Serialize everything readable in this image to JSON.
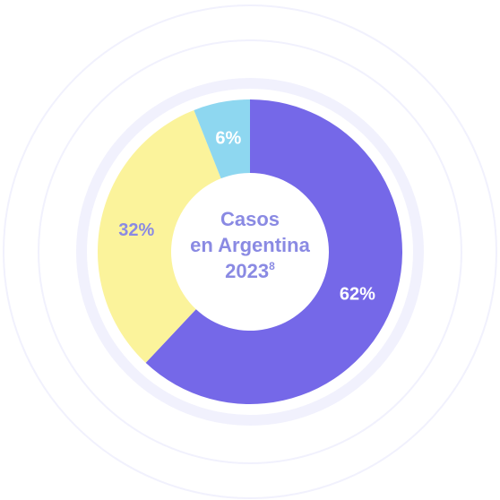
{
  "chart_data": {
    "type": "pie",
    "title_lines": [
      "Casos",
      "en Argentina",
      "2023"
    ],
    "title_superscript": "8",
    "slices": [
      {
        "label": "62%",
        "value": 62,
        "color": "#7568e8",
        "label_color": "#ffffff"
      },
      {
        "label": "32%",
        "value": 32,
        "color": "#fbf39b",
        "label_color": "#8a8ae3"
      },
      {
        "label": "6%",
        "value": 6,
        "color": "#8ed7f0",
        "label_color": "#ffffff"
      }
    ],
    "ring_color": "#f1f1fd"
  }
}
